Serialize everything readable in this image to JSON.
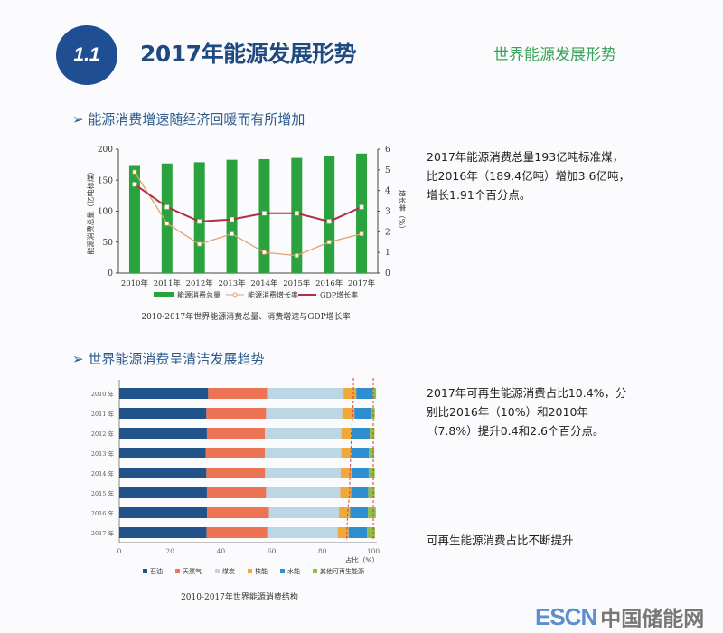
{
  "header": {
    "badge": "1.1",
    "title": "2017年能源发展形势",
    "section_label": "世界能源发展形势"
  },
  "section1": {
    "heading": "能源消费增速随经济回暖而有所增加",
    "arrow_icon": "arrow-right-icon",
    "text": [
      "2017年能源消费总量193亿吨标准煤，",
      "比2016年（189.4亿吨）增加3.6亿吨，",
      "增长1.91个百分点。"
    ]
  },
  "section2": {
    "heading": "世界能源消费呈清洁发展趋势",
    "arrow_icon": "arrow-right-icon",
    "text": [
      "2017年可再生能源消费占比10.4%，分",
      "别比2016年（10%）和2010年",
      "（7.8%）提升0.4和2.6个百分点。"
    ],
    "note": "可再生能源消费占比不断提升"
  },
  "chart_data": [
    {
      "type": "bar+line",
      "title": "2010-2017年世界能源消费总量、消费增速与GDP增长率",
      "categories": [
        "2010年",
        "2011年",
        "2012年",
        "2013年",
        "2014年",
        "2015年",
        "2016年",
        "2017年"
      ],
      "ylabel": "能源消费总量（亿吨标煤）",
      "ylim": [
        0,
        200
      ],
      "yticks": [
        0,
        50,
        100,
        150,
        200
      ],
      "y2label": "增长率（%）",
      "y2lim": [
        0,
        6
      ],
      "y2ticks": [
        0,
        1,
        2,
        3,
        4,
        5,
        6
      ],
      "series": [
        {
          "name": "能源消费总量",
          "type": "bar",
          "axis": "left",
          "color": "#2aa33f",
          "values": [
            173,
            177,
            179,
            183,
            184,
            186,
            189,
            193
          ]
        },
        {
          "name": "能源消费增长率",
          "type": "line",
          "axis": "right",
          "color": "#e0a070",
          "values": [
            4.9,
            2.4,
            1.4,
            1.9,
            1.0,
            0.85,
            1.5,
            1.9
          ]
        },
        {
          "name": "GDP增长率",
          "type": "line",
          "axis": "right",
          "color": "#b03040",
          "values": [
            4.3,
            3.2,
            2.5,
            2.6,
            2.9,
            2.9,
            2.5,
            3.2
          ]
        }
      ],
      "legend": "bottom",
      "grid": false
    },
    {
      "type": "stacked-bar-horizontal",
      "title": "2010-2017年世界能源消费结构",
      "categories": [
        "2010 年",
        "2011 年",
        "2012 年",
        "2013 年",
        "2014 年",
        "2015 年",
        "2016 年",
        "2017 年"
      ],
      "xlabel": "占比（%）",
      "xlim": [
        0,
        100
      ],
      "xticks": [
        0,
        20,
        40,
        60,
        80,
        100
      ],
      "series": [
        {
          "name": "石油",
          "color": "#22528a",
          "values": [
            35.0,
            34.3,
            34.5,
            34.0,
            34.3,
            34.5,
            34.6,
            34.4
          ]
        },
        {
          "name": "天然气",
          "color": "#ec7455",
          "values": [
            23.2,
            23.5,
            22.8,
            23.3,
            23.1,
            23.3,
            24.3,
            23.9
          ]
        },
        {
          "name": "煤炭",
          "color": "#bcd6e4",
          "values": [
            30.1,
            30.0,
            30.1,
            30.1,
            29.8,
            29.2,
            27.6,
            27.7
          ]
        },
        {
          "name": "核能",
          "color": "#f0a83a",
          "values": [
            5.0,
            4.8,
            4.4,
            4.2,
            4.2,
            4.3,
            4.4,
            4.3
          ]
        },
        {
          "name": "水能",
          "color": "#2e8fd0",
          "values": [
            6.5,
            6.4,
            6.8,
            6.7,
            6.8,
            6.7,
            7.0,
            7.3
          ]
        },
        {
          "name": "其他可再生能源",
          "color": "#8cc04a",
          "values": [
            1.3,
            1.6,
            1.9,
            2.1,
            2.4,
            2.6,
            3.1,
            3.1
          ]
        }
      ],
      "legend": "bottom",
      "grid": false
    }
  ],
  "logo": {
    "en": "ESCN",
    "cn": "中国储能网"
  }
}
